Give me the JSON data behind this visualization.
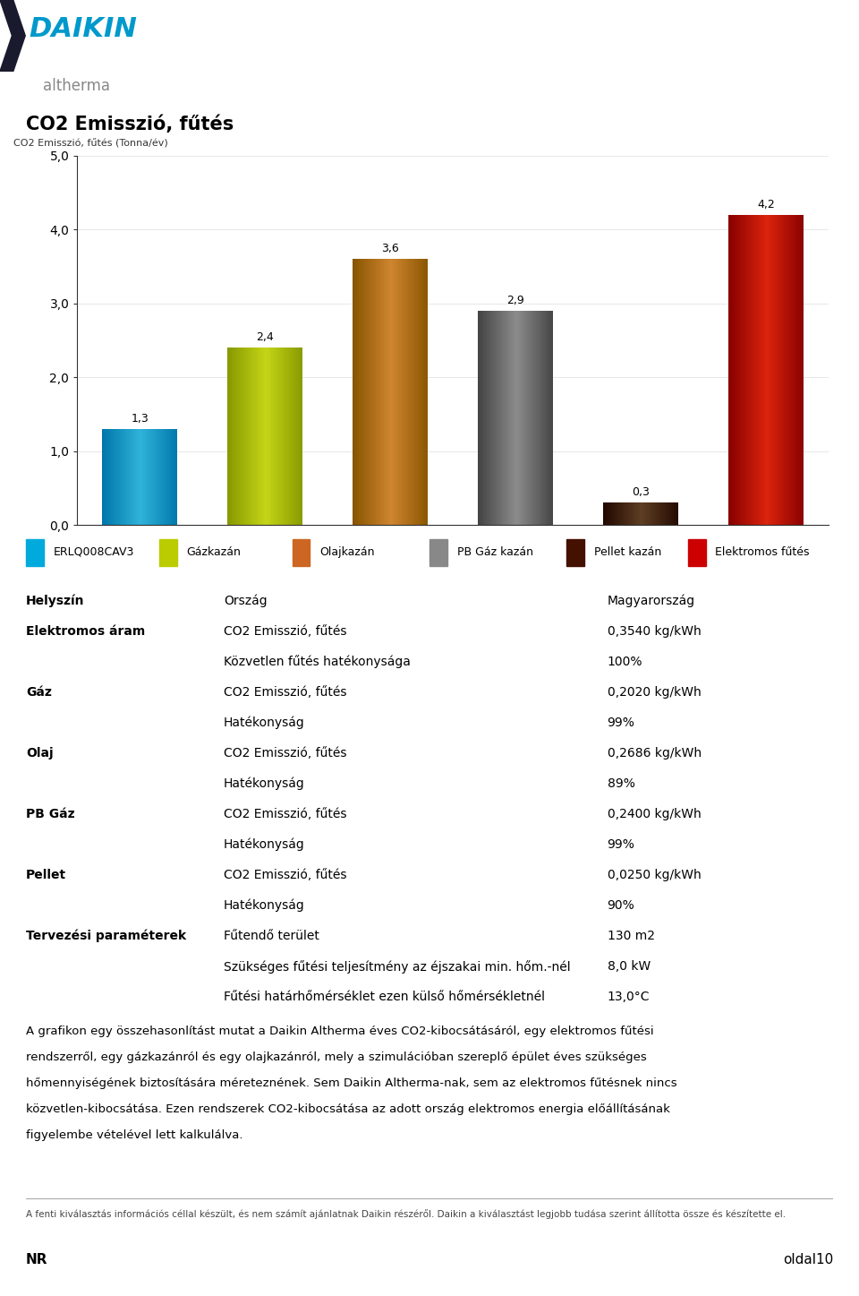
{
  "title": "CO2 Emisszió, fűtés",
  "chart_ylabel": "CO2 Emisszió, fűtés (Tonna/év)",
  "values": [
    1.3,
    2.4,
    3.6,
    2.9,
    0.3,
    4.2
  ],
  "value_labels": [
    "1,3",
    "2,4",
    "3,6",
    "2,9",
    "0,3",
    "4,2"
  ],
  "ylim": [
    0,
    5.0
  ],
  "yticks": [
    0.0,
    1.0,
    2.0,
    3.0,
    4.0,
    5.0
  ],
  "ytick_labels": [
    "0,0",
    "1,0",
    "2,0",
    "3,0",
    "4,0",
    "5,0"
  ],
  "legend_labels": [
    "ERLQ008CAV3",
    "Gázkazán",
    "Olajkazán",
    "PB Gáz kazán",
    "Pellet kazán",
    "Elektromos fűtés"
  ],
  "legend_colors": [
    "#00AADD",
    "#BBCC00",
    "#CC6622",
    "#888888",
    "#441100",
    "#CC0000"
  ],
  "bar_grad_light": [
    "#44CCEE",
    "#DDEE22",
    "#EE9944",
    "#AAAAAA",
    "#775533",
    "#FF3311"
  ],
  "bar_grad_dark": [
    "#0077AA",
    "#889900",
    "#885500",
    "#444444",
    "#220800",
    "#880000"
  ],
  "info_rows": [
    [
      "Helyszín",
      "Ország",
      "Magyarország"
    ],
    [
      "Elektromos áram",
      "CO2 Emisszió, fűtés",
      "0,3540 kg/kWh"
    ],
    [
      "",
      "Közvetlen fűtés hatékonysága",
      "100%"
    ],
    [
      "Gáz",
      "CO2 Emisszió, fűtés",
      "0,2020 kg/kWh"
    ],
    [
      "",
      "Hatékonyság",
      "99%"
    ],
    [
      "Olaj",
      "CO2 Emisszió, fűtés",
      "0,2686 kg/kWh"
    ],
    [
      "",
      "Hatékonyság",
      "89%"
    ],
    [
      "PB Gáz",
      "CO2 Emisszió, fűtés",
      "0,2400 kg/kWh"
    ],
    [
      "",
      "Hatékonyság",
      "99%"
    ],
    [
      "Pellet",
      "CO2 Emisszió, fűtés",
      "0,0250 kg/kWh"
    ],
    [
      "",
      "Hatékonyság",
      "90%"
    ],
    [
      "Tervezési paraméterek",
      "Fűtendő terület",
      "130 m2"
    ],
    [
      "",
      "Szükséges fűtési teljesítmény az éjszakai min. hőm.-nél",
      "8,0 kW"
    ],
    [
      "",
      "Fűtési határhőmérséklet ezen külső hőmérsékletnél",
      "13,0°C"
    ]
  ],
  "body_lines": [
    "A grafikon egy összehasonlítást mutat a Daikin Altherma éves CO2-kibocsátásáról, egy elektromos fűtési",
    "rendszerről, egy gázkazánról és egy olajkazánról, mely a szimulációban szereplő épület éves szükséges",
    "hőmennyiségének biztosítására méreteznének. Sem Daikin Altherma-nak, sem az elektromos fűtésnek nincs",
    "közvetlen-kibocsátása. Ezen rendszerek CO2-kibocsátása az adott ország elektromos energia előállításának",
    "figyelembe vételével lett kalkulálva."
  ],
  "footer_text": "A fenti kiválasztás információs céllal készült, és nem számít ajánlatnak Daikin részéről. Daikin a kiválasztást legjobb tudása szerint állította össze és készítette el.",
  "page_label": "oldal10",
  "nr_label": "NR",
  "bg_color": "#FFFFFF",
  "text_color": "#000000",
  "daikin_blue": "#0099CC",
  "daikin_dark": "#1A1A2E",
  "altherma_gray": "#888888"
}
